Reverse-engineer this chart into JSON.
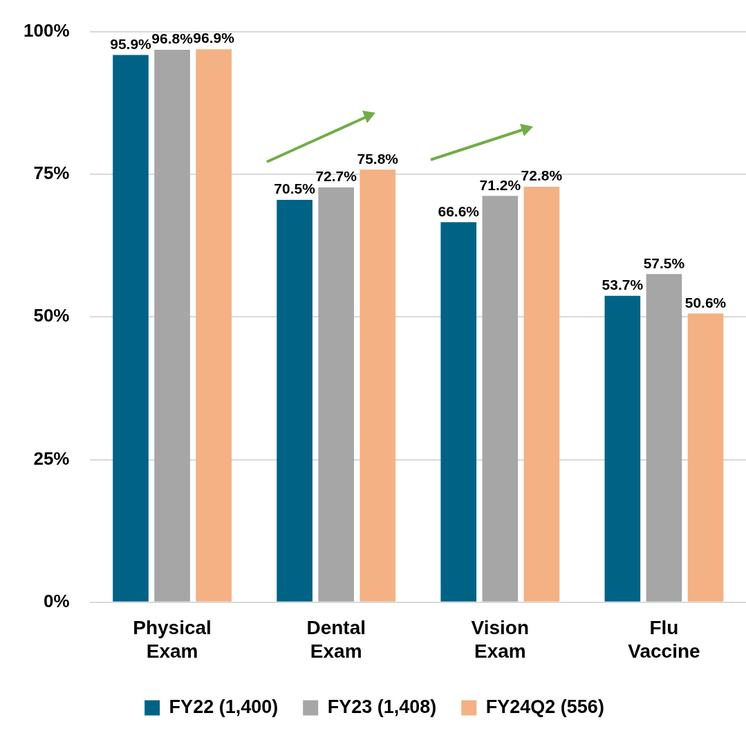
{
  "chart_data": {
    "type": "bar",
    "categories": [
      "Physical Exam",
      "Dental Exam",
      "Vision Exam",
      "Flu Vaccine"
    ],
    "series": [
      {
        "name": "FY22 (1,400)",
        "color": "#006385",
        "values": [
          95.9,
          70.5,
          66.6,
          53.7
        ],
        "value_labels": [
          "95.9%",
          "70.5%",
          "66.6%",
          "53.7%"
        ]
      },
      {
        "name": "FY23 (1,408)",
        "color": "#a6a6a6",
        "values": [
          96.8,
          72.7,
          71.2,
          57.5
        ],
        "value_labels": [
          "96.8%",
          "72.7%",
          "71.2%",
          "57.5%"
        ]
      },
      {
        "name": "FY24Q2 (556)",
        "color": "#f4b183",
        "values": [
          96.9,
          75.8,
          72.8,
          50.6
        ],
        "value_labels": [
          "96.9%",
          "75.8%",
          "72.8%",
          "50.6%"
        ]
      }
    ],
    "ylim": [
      0,
      100
    ],
    "yticks": [
      {
        "value": 0,
        "label": "0%"
      },
      {
        "value": 25,
        "label": "25%"
      },
      {
        "value": 50,
        "label": "50%"
      },
      {
        "value": 75,
        "label": "75%"
      },
      {
        "value": 100,
        "label": "100%"
      }
    ],
    "grid": "y",
    "legend": "bottom"
  }
}
